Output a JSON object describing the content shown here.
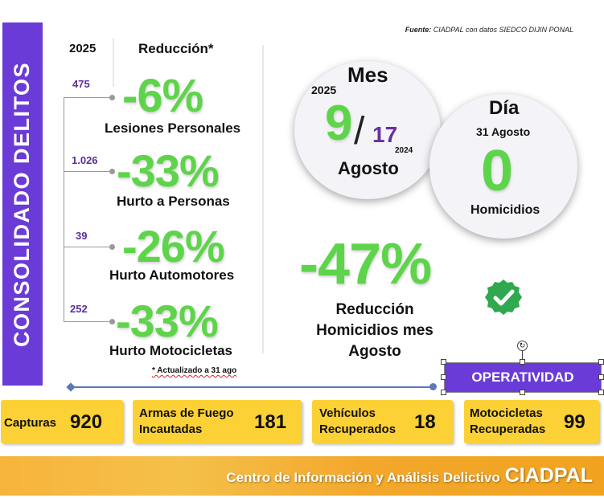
{
  "banner": {
    "title": "CONSOLIDADO  DELITOS"
  },
  "source": {
    "label": "Fuente:",
    "text": " CIADPAL con datos SIEDCO DIJIN PONAL"
  },
  "table_header": {
    "year": "2025",
    "reduction": "Reducción*"
  },
  "crimes": [
    {
      "base": "475",
      "pct": "-6%",
      "label": "Lesiones Personales"
    },
    {
      "base": "1.026",
      "pct": "-33%",
      "label": "Hurto a Personas"
    },
    {
      "base": "39",
      "pct": "-26%",
      "label": "Hurto Automotores"
    },
    {
      "base": "252",
      "pct": "-33%",
      "label": "Hurto Motocicletas"
    }
  ],
  "note": "* Actualizado a 31 ago",
  "month_circle": {
    "title": "Mes",
    "year_current": "2025",
    "value_current": "9",
    "separator": "/",
    "value_previous": "17",
    "year_previous": "2024",
    "month": "Agosto"
  },
  "day_circle": {
    "title": "Día",
    "date": "31 Agosto",
    "value": "0",
    "label": "Homicidios"
  },
  "homicide_reduction": {
    "pct": "-47%",
    "line1": "Reducción",
    "line2": "Homicidios mes",
    "line3": "Agosto"
  },
  "operatividad": {
    "label": "OPERATIVIDAD"
  },
  "stats": [
    {
      "label1": "Capturas",
      "label2": "",
      "value": "920"
    },
    {
      "label1": "Armas de Fuego",
      "label2": "Incautadas",
      "value": "181"
    },
    {
      "label1": "Vehículos",
      "label2": "Recuperados",
      "value": "18"
    },
    {
      "label1": "Motocicletas",
      "label2": "Recuperadas",
      "value": "99"
    }
  ],
  "footer": {
    "text": "Centro de Información y Análisis Delictivo",
    "brand": "CIADPAL"
  },
  "colors": {
    "purple": "#6a3bd6",
    "green": "#5ed44a",
    "yellow": "#fcd135",
    "orange": "#f3a82c"
  }
}
